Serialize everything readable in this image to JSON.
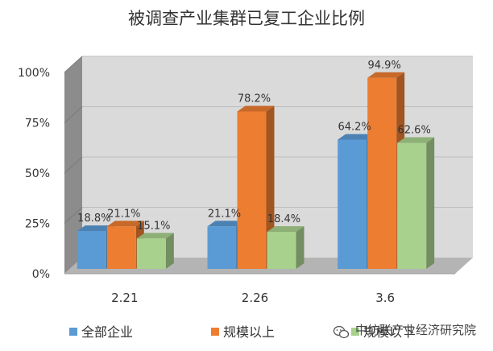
{
  "chart_data": {
    "type": "bar",
    "title": "被调查产业集群已复工企业比例",
    "categories": [
      "2.21",
      "2.26",
      "3.6"
    ],
    "series": [
      {
        "name": "全部企业",
        "values": [
          18.8,
          21.1,
          64.2
        ],
        "labels": [
          "18.8%",
          "21.1%",
          "64.2%"
        ],
        "color": "#5B9BD5"
      },
      {
        "name": "规模以上",
        "values": [
          21.1,
          78.2,
          94.9
        ],
        "labels": [
          "21.1%",
          "78.2%",
          "94.9%"
        ],
        "color": "#ED7D31"
      },
      {
        "name": "规模以下",
        "values": [
          15.1,
          18.4,
          62.6
        ],
        "labels": [
          "15.1%",
          "18.4%",
          "62.6%"
        ],
        "color": "#A9D18E"
      }
    ],
    "ylim": [
      0,
      100
    ],
    "yticks": [
      "0%",
      "25%",
      "50%",
      "75%",
      "100%"
    ],
    "ytick_values": [
      0,
      25,
      50,
      75,
      100
    ],
    "grid": true,
    "style": "3d-clustered-column",
    "legend_position": "bottom"
  },
  "watermark": {
    "text": "中纺联产业经济研究院"
  }
}
